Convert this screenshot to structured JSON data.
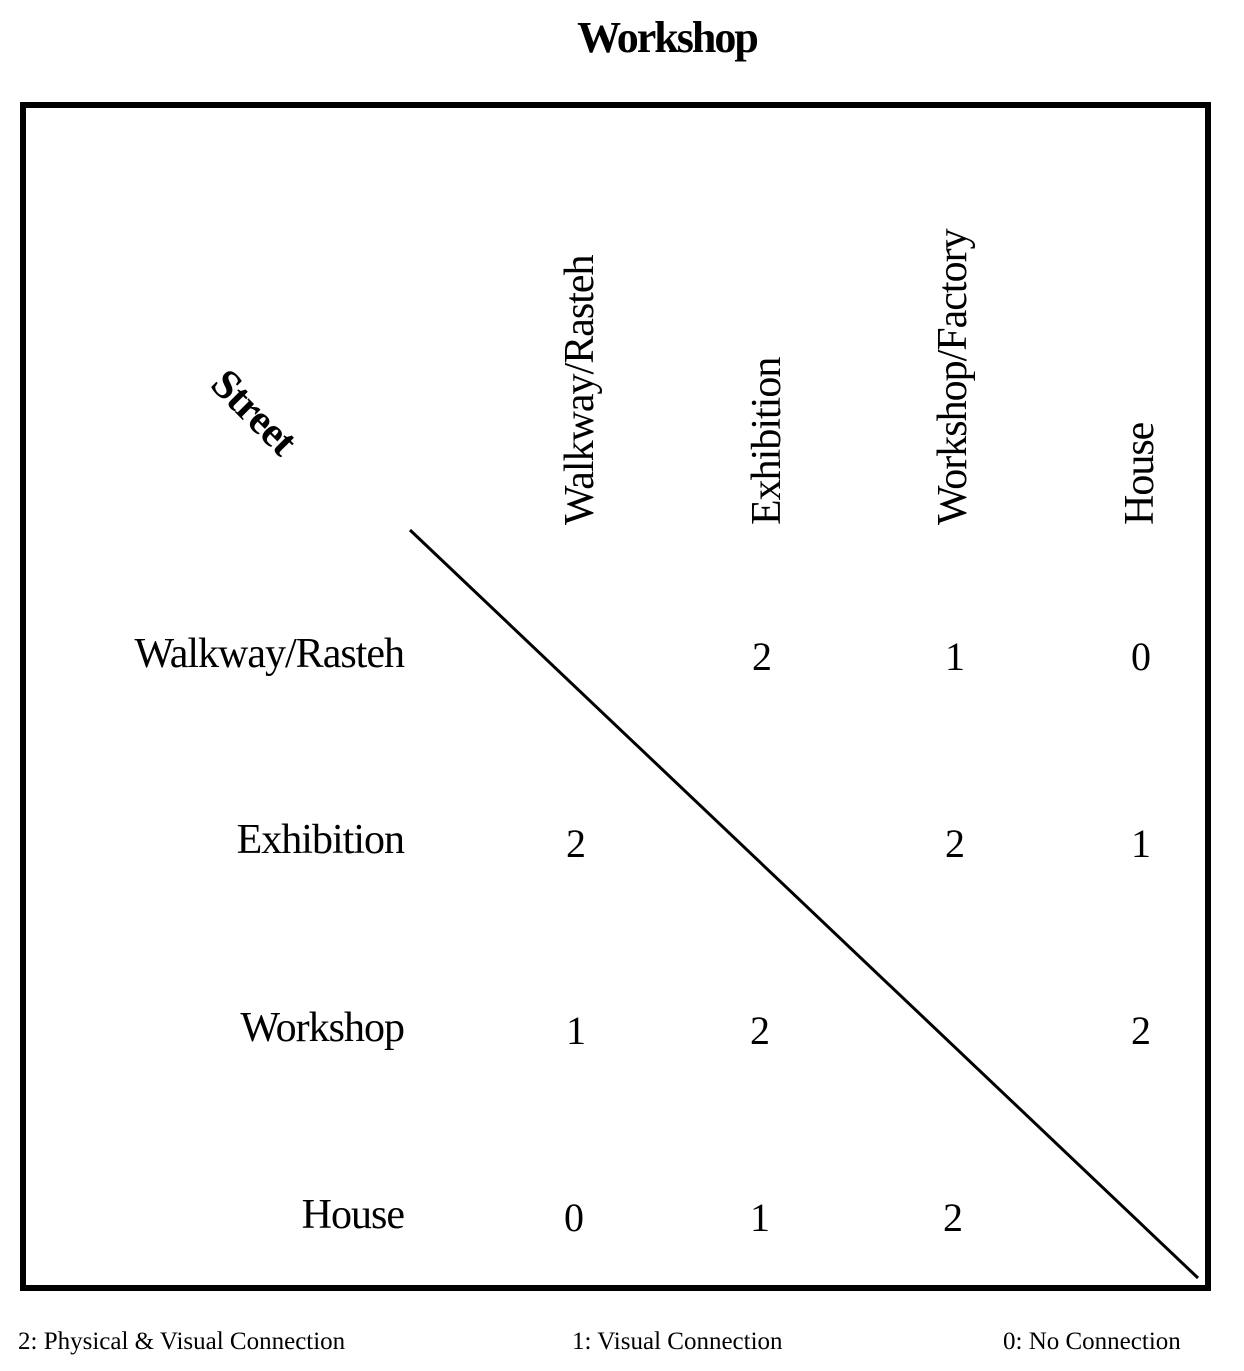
{
  "title": "Workshop",
  "corner_label": "Street",
  "columns": [
    "Walkway/Rasteh",
    "Exhibition",
    "Workshop/Factory",
    "House"
  ],
  "rows": [
    {
      "label": "Walkway/Rasteh",
      "values": [
        "",
        "2",
        "1",
        "0"
      ]
    },
    {
      "label": "Exhibition",
      "values": [
        "2",
        "",
        "2",
        "1"
      ]
    },
    {
      "label": "Workshop",
      "values": [
        "1",
        "2",
        "",
        "2"
      ]
    },
    {
      "label": "House",
      "values": [
        "0",
        "1",
        "2",
        ""
      ]
    }
  ],
  "legend": [
    "2: Physical & Visual Connection",
    "1: Visual Connection",
    "0: No Connection"
  ]
}
